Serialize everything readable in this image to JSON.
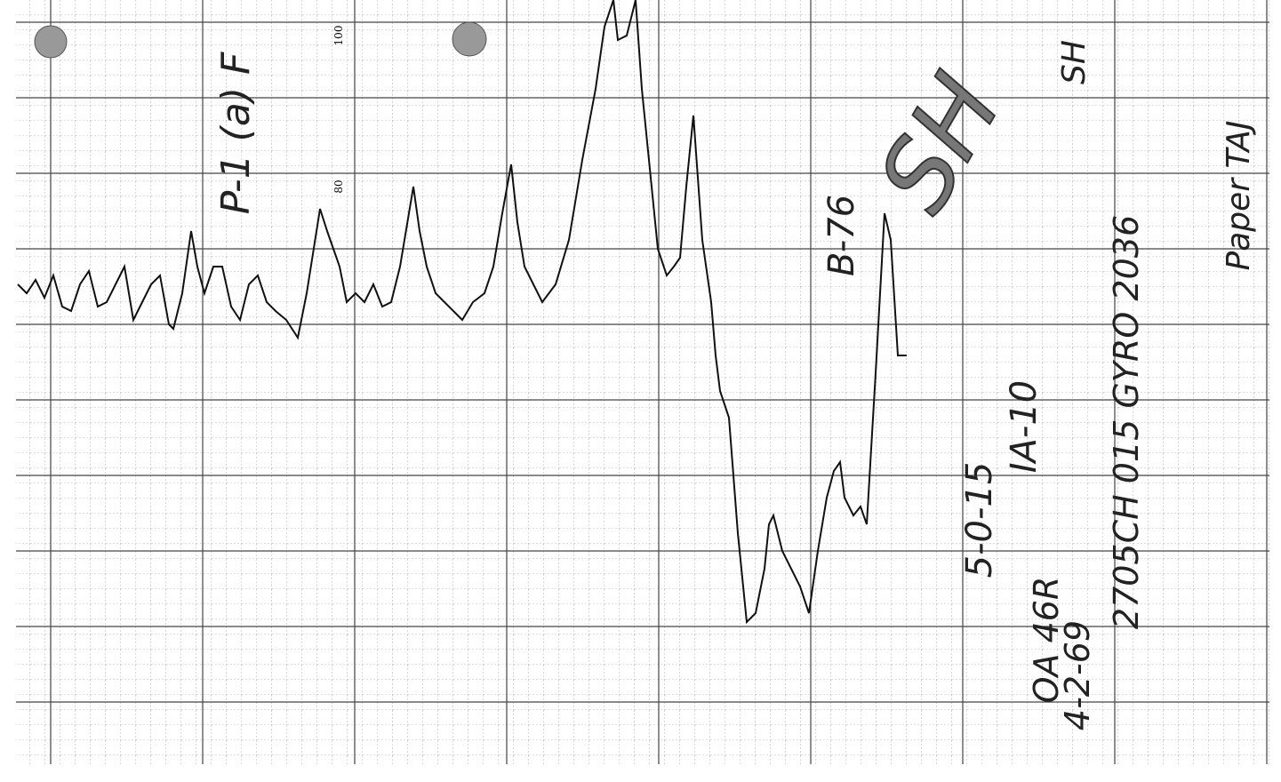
{
  "scale": {
    "top": "100",
    "upper": "80"
  },
  "notes": {
    "record": "P-1 (a) F",
    "run": "B-76",
    "stamp": "SH",
    "stamp_small": "SH",
    "date_code": "5-0-15",
    "unit": "IA-10",
    "axis": "OA 46R",
    "serial": "2705CH 015 GYRO 2036",
    "date": "4-2-69",
    "sheet": "Paper TAJ"
  }
}
